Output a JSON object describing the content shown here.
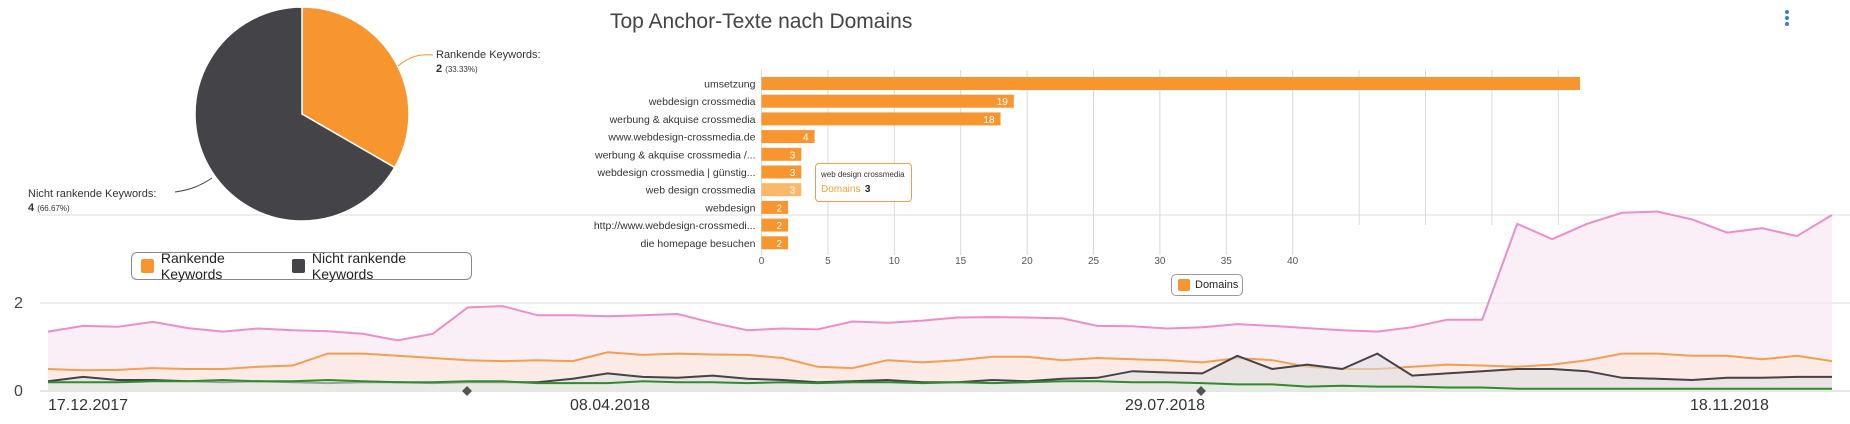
{
  "charts_meta": {
    "bar_title": "Top Anchor-Texte nach Domains",
    "colors": {
      "orange": "#f7962e",
      "dark": "#434348",
      "pink": "#ec8ec8",
      "green": "#2e8b2e",
      "area_orange": "#f0a050",
      "grid": "#d9d9d9"
    }
  },
  "chart_data": [
    {
      "type": "pie",
      "slices": [
        {
          "label": "Rankende Keywords",
          "value": 2,
          "percent": "33.33%",
          "color": "#f7962e"
        },
        {
          "label": "Nicht rankende Keywords",
          "value": 4,
          "percent": "66.67%",
          "color": "#434348"
        }
      ],
      "legend": [
        "Rankende Keywords",
        "Nicht rankende Keywords"
      ],
      "legend_position": "bottom"
    },
    {
      "type": "bar",
      "orientation": "horizontal",
      "title": "Top Anchor-Texte nach Domains",
      "categories": [
        "umsetzung",
        "webdesign crossmedia",
        "werbung & akquise crossmedia",
        "www.webdesign-crossmedia.de",
        "werbung & akquise crossmedia /...",
        "webdesign crossmedia | günstig...",
        "web design crossmedia",
        "webdesign",
        "http://www.webdesign-crossmedi...",
        "die homepage besuchen"
      ],
      "series": [
        {
          "name": "Domains",
          "values": [
            75,
            19,
            18,
            4,
            3,
            3,
            3,
            2,
            2,
            2
          ]
        }
      ],
      "xticks": [
        "0",
        "5",
        "10",
        "15",
        "20",
        "25",
        "30",
        "35",
        "40"
      ],
      "xlim": [
        0,
        75
      ],
      "legend": [
        "Domains"
      ],
      "legend_position": "bottom",
      "tooltip": {
        "category": "web design crossmedia",
        "series": "Domains",
        "value": "3"
      }
    },
    {
      "type": "area",
      "x_labels": [
        "17.12.2017",
        "08.04.2018",
        "29.07.2018",
        "18.11.2018"
      ],
      "yticks": [
        "2",
        "0"
      ],
      "ylim": [
        0,
        4
      ],
      "series": [
        {
          "color": "#ec8ec8",
          "values": [
            1.35,
            1.48,
            1.46,
            1.57,
            1.43,
            1.35,
            1.42,
            1.38,
            1.36,
            1.3,
            1.15,
            1.3,
            1.9,
            1.93,
            1.72,
            1.72,
            1.7,
            1.72,
            1.75,
            1.55,
            1.38,
            1.42,
            1.4,
            1.58,
            1.55,
            1.6,
            1.67,
            1.68,
            1.67,
            1.65,
            1.48,
            1.47,
            1.42,
            1.45,
            1.52,
            1.48,
            1.43,
            1.38,
            1.35,
            1.45,
            1.62,
            1.62,
            3.8,
            3.45,
            3.8,
            4.05,
            4.08,
            3.9,
            3.6,
            3.7,
            3.52,
            4.0
          ]
        },
        {
          "color": "#f0a050",
          "values": [
            0.5,
            0.47,
            0.48,
            0.52,
            0.5,
            0.5,
            0.55,
            0.58,
            0.85,
            0.85,
            0.8,
            0.75,
            0.7,
            0.68,
            0.7,
            0.68,
            0.88,
            0.82,
            0.85,
            0.83,
            0.82,
            0.75,
            0.55,
            0.52,
            0.7,
            0.65,
            0.7,
            0.78,
            0.78,
            0.7,
            0.75,
            0.72,
            0.7,
            0.65,
            0.75,
            0.7,
            0.55,
            0.5,
            0.5,
            0.55,
            0.6,
            0.58,
            0.55,
            0.6,
            0.7,
            0.85,
            0.85,
            0.8,
            0.8,
            0.72,
            0.8,
            0.68
          ]
        },
        {
          "color": "#434348",
          "values": [
            0.22,
            0.32,
            0.25,
            0.25,
            0.22,
            0.2,
            0.22,
            0.2,
            0.18,
            0.2,
            0.2,
            0.18,
            0.2,
            0.2,
            0.2,
            0.28,
            0.4,
            0.32,
            0.3,
            0.35,
            0.28,
            0.25,
            0.2,
            0.22,
            0.25,
            0.2,
            0.2,
            0.25,
            0.22,
            0.28,
            0.3,
            0.45,
            0.42,
            0.4,
            0.8,
            0.5,
            0.6,
            0.5,
            0.85,
            0.35,
            0.4,
            0.45,
            0.5,
            0.5,
            0.45,
            0.3,
            0.28,
            0.25,
            0.3,
            0.3,
            0.32,
            0.32
          ]
        },
        {
          "color": "#2e8b2e",
          "values": [
            0.2,
            0.2,
            0.2,
            0.22,
            0.22,
            0.25,
            0.22,
            0.22,
            0.25,
            0.22,
            0.2,
            0.2,
            0.22,
            0.22,
            0.18,
            0.18,
            0.18,
            0.22,
            0.2,
            0.2,
            0.18,
            0.2,
            0.18,
            0.2,
            0.2,
            0.18,
            0.2,
            0.18,
            0.2,
            0.22,
            0.22,
            0.2,
            0.2,
            0.18,
            0.15,
            0.15,
            0.1,
            0.12,
            0.1,
            0.1,
            0.08,
            0.08,
            0.05,
            0.05,
            0.05,
            0.05,
            0.05,
            0.05,
            0.05,
            0.05,
            0.05,
            0.05
          ]
        }
      ],
      "grid": true
    }
  ]
}
